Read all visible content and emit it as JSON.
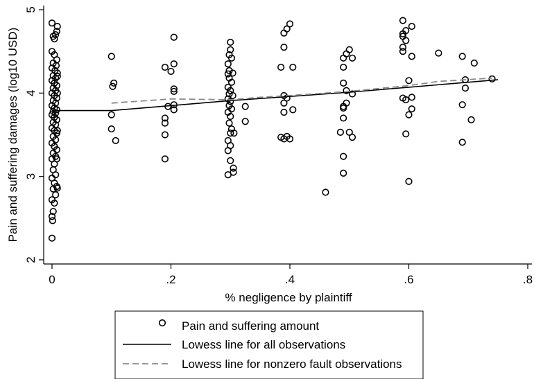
{
  "chart_data": {
    "type": "scatter",
    "xlabel": "% negligence by plaintiff",
    "ylabel": "Pain and suffering damages (log10 USD)",
    "xlim": [
      0,
      0.8
    ],
    "ylim": [
      1.95,
      5.05
    ],
    "xticks": [
      0,
      0.2,
      0.4,
      0.6,
      0.8
    ],
    "xtick_labels": [
      "0",
      ".2",
      ".4",
      ".6",
      ".8"
    ],
    "yticks": [
      2,
      3,
      4,
      5
    ],
    "ytick_labels": [
      "2",
      "3",
      "4",
      "5"
    ],
    "grid": false,
    "legend_position": "bottom",
    "series": [
      {
        "name": "Pain and suffering amount",
        "kind": "points",
        "marker": "hollow-circle",
        "color": "#000000",
        "points": [
          [
            0.0,
            4.84
          ],
          [
            0.002,
            4.68
          ],
          [
            0.004,
            4.65
          ],
          [
            0.008,
            4.74
          ],
          [
            0.009,
            4.8
          ],
          [
            0.006,
            4.7
          ],
          [
            0.0,
            4.5
          ],
          [
            0.004,
            4.46
          ],
          [
            0.008,
            4.4
          ],
          [
            0.002,
            4.36
          ],
          [
            0.007,
            4.33
          ],
          [
            0.0,
            4.3
          ],
          [
            0.005,
            4.27
          ],
          [
            0.009,
            4.24
          ],
          [
            0.002,
            4.21
          ],
          [
            0.006,
            4.18
          ],
          [
            0.0,
            4.15
          ],
          [
            0.004,
            4.12
          ],
          [
            0.008,
            4.09
          ],
          [
            0.002,
            4.06
          ],
          [
            0.006,
            4.03
          ],
          [
            0.0,
            4.0
          ],
          [
            0.004,
            3.97
          ],
          [
            0.008,
            3.94
          ],
          [
            0.002,
            3.91
          ],
          [
            0.006,
            3.88
          ],
          [
            0.0,
            3.85
          ],
          [
            0.004,
            3.82
          ],
          [
            0.008,
            3.8
          ],
          [
            0.002,
            3.78
          ],
          [
            0.006,
            3.76
          ],
          [
            0.0,
            3.74
          ],
          [
            0.004,
            3.71
          ],
          [
            0.008,
            3.68
          ],
          [
            0.002,
            3.65
          ],
          [
            0.006,
            3.62
          ],
          [
            0.0,
            3.58
          ],
          [
            0.004,
            3.55
          ],
          [
            0.008,
            3.52
          ],
          [
            0.002,
            3.48
          ],
          [
            0.006,
            3.44
          ],
          [
            0.0,
            3.4
          ],
          [
            0.004,
            3.36
          ],
          [
            0.008,
            3.32
          ],
          [
            0.002,
            3.28
          ],
          [
            0.006,
            3.24
          ],
          [
            0.0,
            3.21
          ],
          [
            0.008,
            3.21
          ],
          [
            0.004,
            3.15
          ],
          [
            0.002,
            3.08
          ],
          [
            0.006,
            3.02
          ],
          [
            0.0,
            2.98
          ],
          [
            0.004,
            2.92
          ],
          [
            0.008,
            2.88
          ],
          [
            0.002,
            2.85
          ],
          [
            0.006,
            2.78
          ],
          [
            0.0,
            2.72
          ],
          [
            0.004,
            2.68
          ],
          [
            0.002,
            2.58
          ],
          [
            0.0,
            2.52
          ],
          [
            0.001,
            2.47
          ],
          [
            0.0,
            2.26
          ],
          [
            0.009,
            2.86
          ],
          [
            0.009,
            3.55
          ],
          [
            0.009,
            4.0
          ],
          [
            0.009,
            4.2
          ],
          [
            0.1,
            4.44
          ],
          [
            0.102,
            4.08
          ],
          [
            0.104,
            4.12
          ],
          [
            0.1,
            3.74
          ],
          [
            0.1,
            3.57
          ],
          [
            0.107,
            3.43
          ],
          [
            0.19,
            4.31
          ],
          [
            0.2,
            4.26
          ],
          [
            0.205,
            4.35
          ],
          [
            0.205,
            4.67
          ],
          [
            0.205,
            4.05
          ],
          [
            0.205,
            4.02
          ],
          [
            0.195,
            3.84
          ],
          [
            0.205,
            3.86
          ],
          [
            0.205,
            3.8
          ],
          [
            0.19,
            3.7
          ],
          [
            0.19,
            3.64
          ],
          [
            0.19,
            3.5
          ],
          [
            0.19,
            3.21
          ],
          [
            0.3,
            4.61
          ],
          [
            0.3,
            4.52
          ],
          [
            0.298,
            4.46
          ],
          [
            0.302,
            4.42
          ],
          [
            0.296,
            4.35
          ],
          [
            0.298,
            4.27
          ],
          [
            0.296,
            4.23
          ],
          [
            0.304,
            4.24
          ],
          [
            0.298,
            4.18
          ],
          [
            0.302,
            4.13
          ],
          [
            0.296,
            4.07
          ],
          [
            0.3,
            4.03
          ],
          [
            0.298,
            3.99
          ],
          [
            0.304,
            3.97
          ],
          [
            0.296,
            3.93
          ],
          [
            0.3,
            3.9
          ],
          [
            0.298,
            3.85
          ],
          [
            0.302,
            3.81
          ],
          [
            0.296,
            3.77
          ],
          [
            0.3,
            3.72
          ],
          [
            0.298,
            3.64
          ],
          [
            0.302,
            3.57
          ],
          [
            0.3,
            3.52
          ],
          [
            0.306,
            3.52
          ],
          [
            0.296,
            3.43
          ],
          [
            0.3,
            3.37
          ],
          [
            0.296,
            3.31
          ],
          [
            0.3,
            3.19
          ],
          [
            0.305,
            3.1
          ],
          [
            0.305,
            3.05
          ],
          [
            0.296,
            3.02
          ],
          [
            0.325,
            3.84
          ],
          [
            0.325,
            3.66
          ],
          [
            0.4,
            4.83
          ],
          [
            0.395,
            4.77
          ],
          [
            0.39,
            4.72
          ],
          [
            0.39,
            4.55
          ],
          [
            0.385,
            4.31
          ],
          [
            0.405,
            4.31
          ],
          [
            0.39,
            3.97
          ],
          [
            0.395,
            3.94
          ],
          [
            0.39,
            3.88
          ],
          [
            0.405,
            3.8
          ],
          [
            0.39,
            3.77
          ],
          [
            0.385,
            3.47
          ],
          [
            0.39,
            3.45
          ],
          [
            0.395,
            3.48
          ],
          [
            0.4,
            3.45
          ],
          [
            0.46,
            2.81
          ],
          [
            0.5,
            4.52
          ],
          [
            0.495,
            4.47
          ],
          [
            0.505,
            4.42
          ],
          [
            0.49,
            4.42
          ],
          [
            0.49,
            4.31
          ],
          [
            0.49,
            4.12
          ],
          [
            0.495,
            4.03
          ],
          [
            0.505,
            3.99
          ],
          [
            0.49,
            3.84
          ],
          [
            0.495,
            3.88
          ],
          [
            0.49,
            3.82
          ],
          [
            0.49,
            3.7
          ],
          [
            0.485,
            3.53
          ],
          [
            0.5,
            3.53
          ],
          [
            0.505,
            3.47
          ],
          [
            0.49,
            3.24
          ],
          [
            0.49,
            3.04
          ],
          [
            0.59,
            4.87
          ],
          [
            0.595,
            4.75
          ],
          [
            0.59,
            4.71
          ],
          [
            0.59,
            4.68
          ],
          [
            0.595,
            4.63
          ],
          [
            0.59,
            4.55
          ],
          [
            0.59,
            4.5
          ],
          [
            0.605,
            4.8
          ],
          [
            0.605,
            4.44
          ],
          [
            0.6,
            4.15
          ],
          [
            0.59,
            3.94
          ],
          [
            0.595,
            3.92
          ],
          [
            0.605,
            3.95
          ],
          [
            0.605,
            3.81
          ],
          [
            0.6,
            3.74
          ],
          [
            0.595,
            3.51
          ],
          [
            0.6,
            2.94
          ],
          [
            0.65,
            4.48
          ],
          [
            0.69,
            4.44
          ],
          [
            0.71,
            4.36
          ],
          [
            0.695,
            4.16
          ],
          [
            0.695,
            4.06
          ],
          [
            0.69,
            3.86
          ],
          [
            0.705,
            3.68
          ],
          [
            0.69,
            3.41
          ],
          [
            0.74,
            4.17
          ]
        ]
      },
      {
        "name": "Lowess line for all observations",
        "kind": "line",
        "color": "#000000",
        "points": [
          [
            0.0,
            3.79
          ],
          [
            0.1,
            3.79
          ],
          [
            0.2,
            3.85
          ],
          [
            0.3,
            3.91
          ],
          [
            0.4,
            3.96
          ],
          [
            0.5,
            4.01
          ],
          [
            0.6,
            4.07
          ],
          [
            0.7,
            4.13
          ],
          [
            0.75,
            4.16
          ]
        ]
      },
      {
        "name": "Lowess line for nonzero fault observations",
        "kind": "line",
        "dash": true,
        "color": "#8a8a8a",
        "points": [
          [
            0.1,
            3.88
          ],
          [
            0.2,
            3.93
          ],
          [
            0.3,
            3.92
          ],
          [
            0.35,
            3.95
          ],
          [
            0.4,
            3.97
          ],
          [
            0.5,
            4.02
          ],
          [
            0.6,
            4.09
          ],
          [
            0.65,
            4.14
          ],
          [
            0.74,
            4.18
          ]
        ]
      }
    ]
  }
}
